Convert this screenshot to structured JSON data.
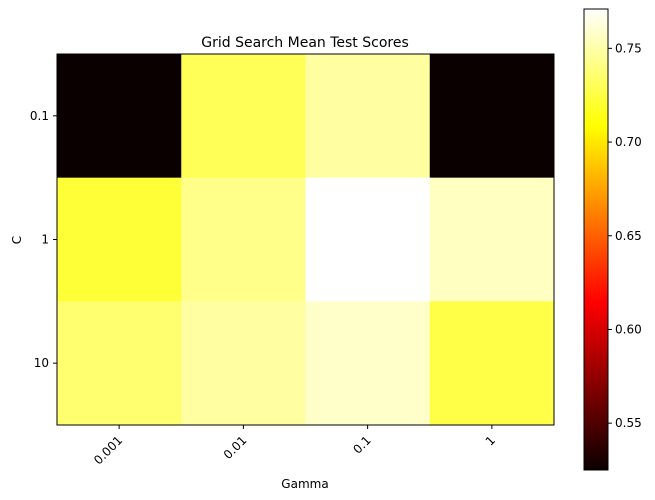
{
  "chart_data": {
    "type": "heatmap",
    "title": "Grid Search Mean Test Scores",
    "xlabel": "Gamma",
    "ylabel": "C",
    "x_categories": [
      "0.001",
      "0.01",
      "0.1",
      "1"
    ],
    "y_categories": [
      "0.1",
      "1",
      "10"
    ],
    "values": [
      [
        0.525,
        0.73,
        0.748,
        0.525
      ],
      [
        0.722,
        0.742,
        0.771,
        0.756
      ],
      [
        0.736,
        0.748,
        0.758,
        0.726
      ]
    ],
    "colormap": "hot",
    "colorbar": {
      "vmin": 0.525,
      "vmax": 0.771,
      "ticks": [
        0.55,
        0.6,
        0.65,
        0.7,
        0.75
      ],
      "tick_labels": [
        "0.55",
        "0.60",
        "0.65",
        "0.70",
        "0.75"
      ]
    },
    "grid": false
  }
}
